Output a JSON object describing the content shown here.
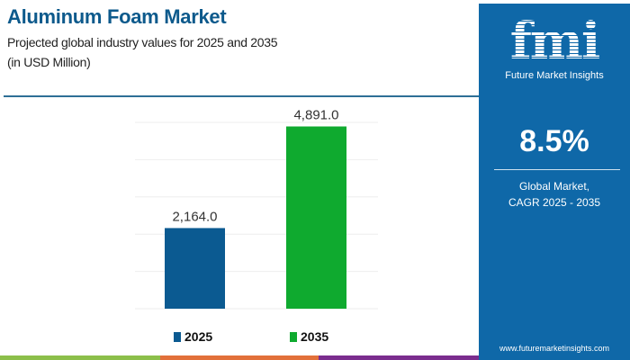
{
  "header": {
    "title": "Aluminum Foam Market",
    "subtitle": "Projected global industry values for 2025 and 2035",
    "unit": "(in USD Million)"
  },
  "sidebar": {
    "logo_text": "fmi",
    "brand": "Future Market Insights",
    "cagr_value": "8.5%",
    "cagr_label_1": "Global Market,",
    "cagr_label_2": "CAGR 2025 - 2035",
    "url": "www.futuremarketinsights.com",
    "background": "#0f68a8"
  },
  "stripes": [
    "#8cbf4a",
    "#e2703a",
    "#7b2d8e"
  ],
  "chart_data": {
    "type": "bar",
    "categories": [
      "2025",
      "2035"
    ],
    "values": [
      2164.0,
      4891.0
    ],
    "value_labels": [
      "2,164.0",
      "4,891.0"
    ],
    "colors": [
      "#0b5a91",
      "#0faa2f"
    ],
    "ylim": [
      0,
      5000
    ],
    "grid": true,
    "legend": "bottom",
    "xlabel": "",
    "ylabel": ""
  }
}
